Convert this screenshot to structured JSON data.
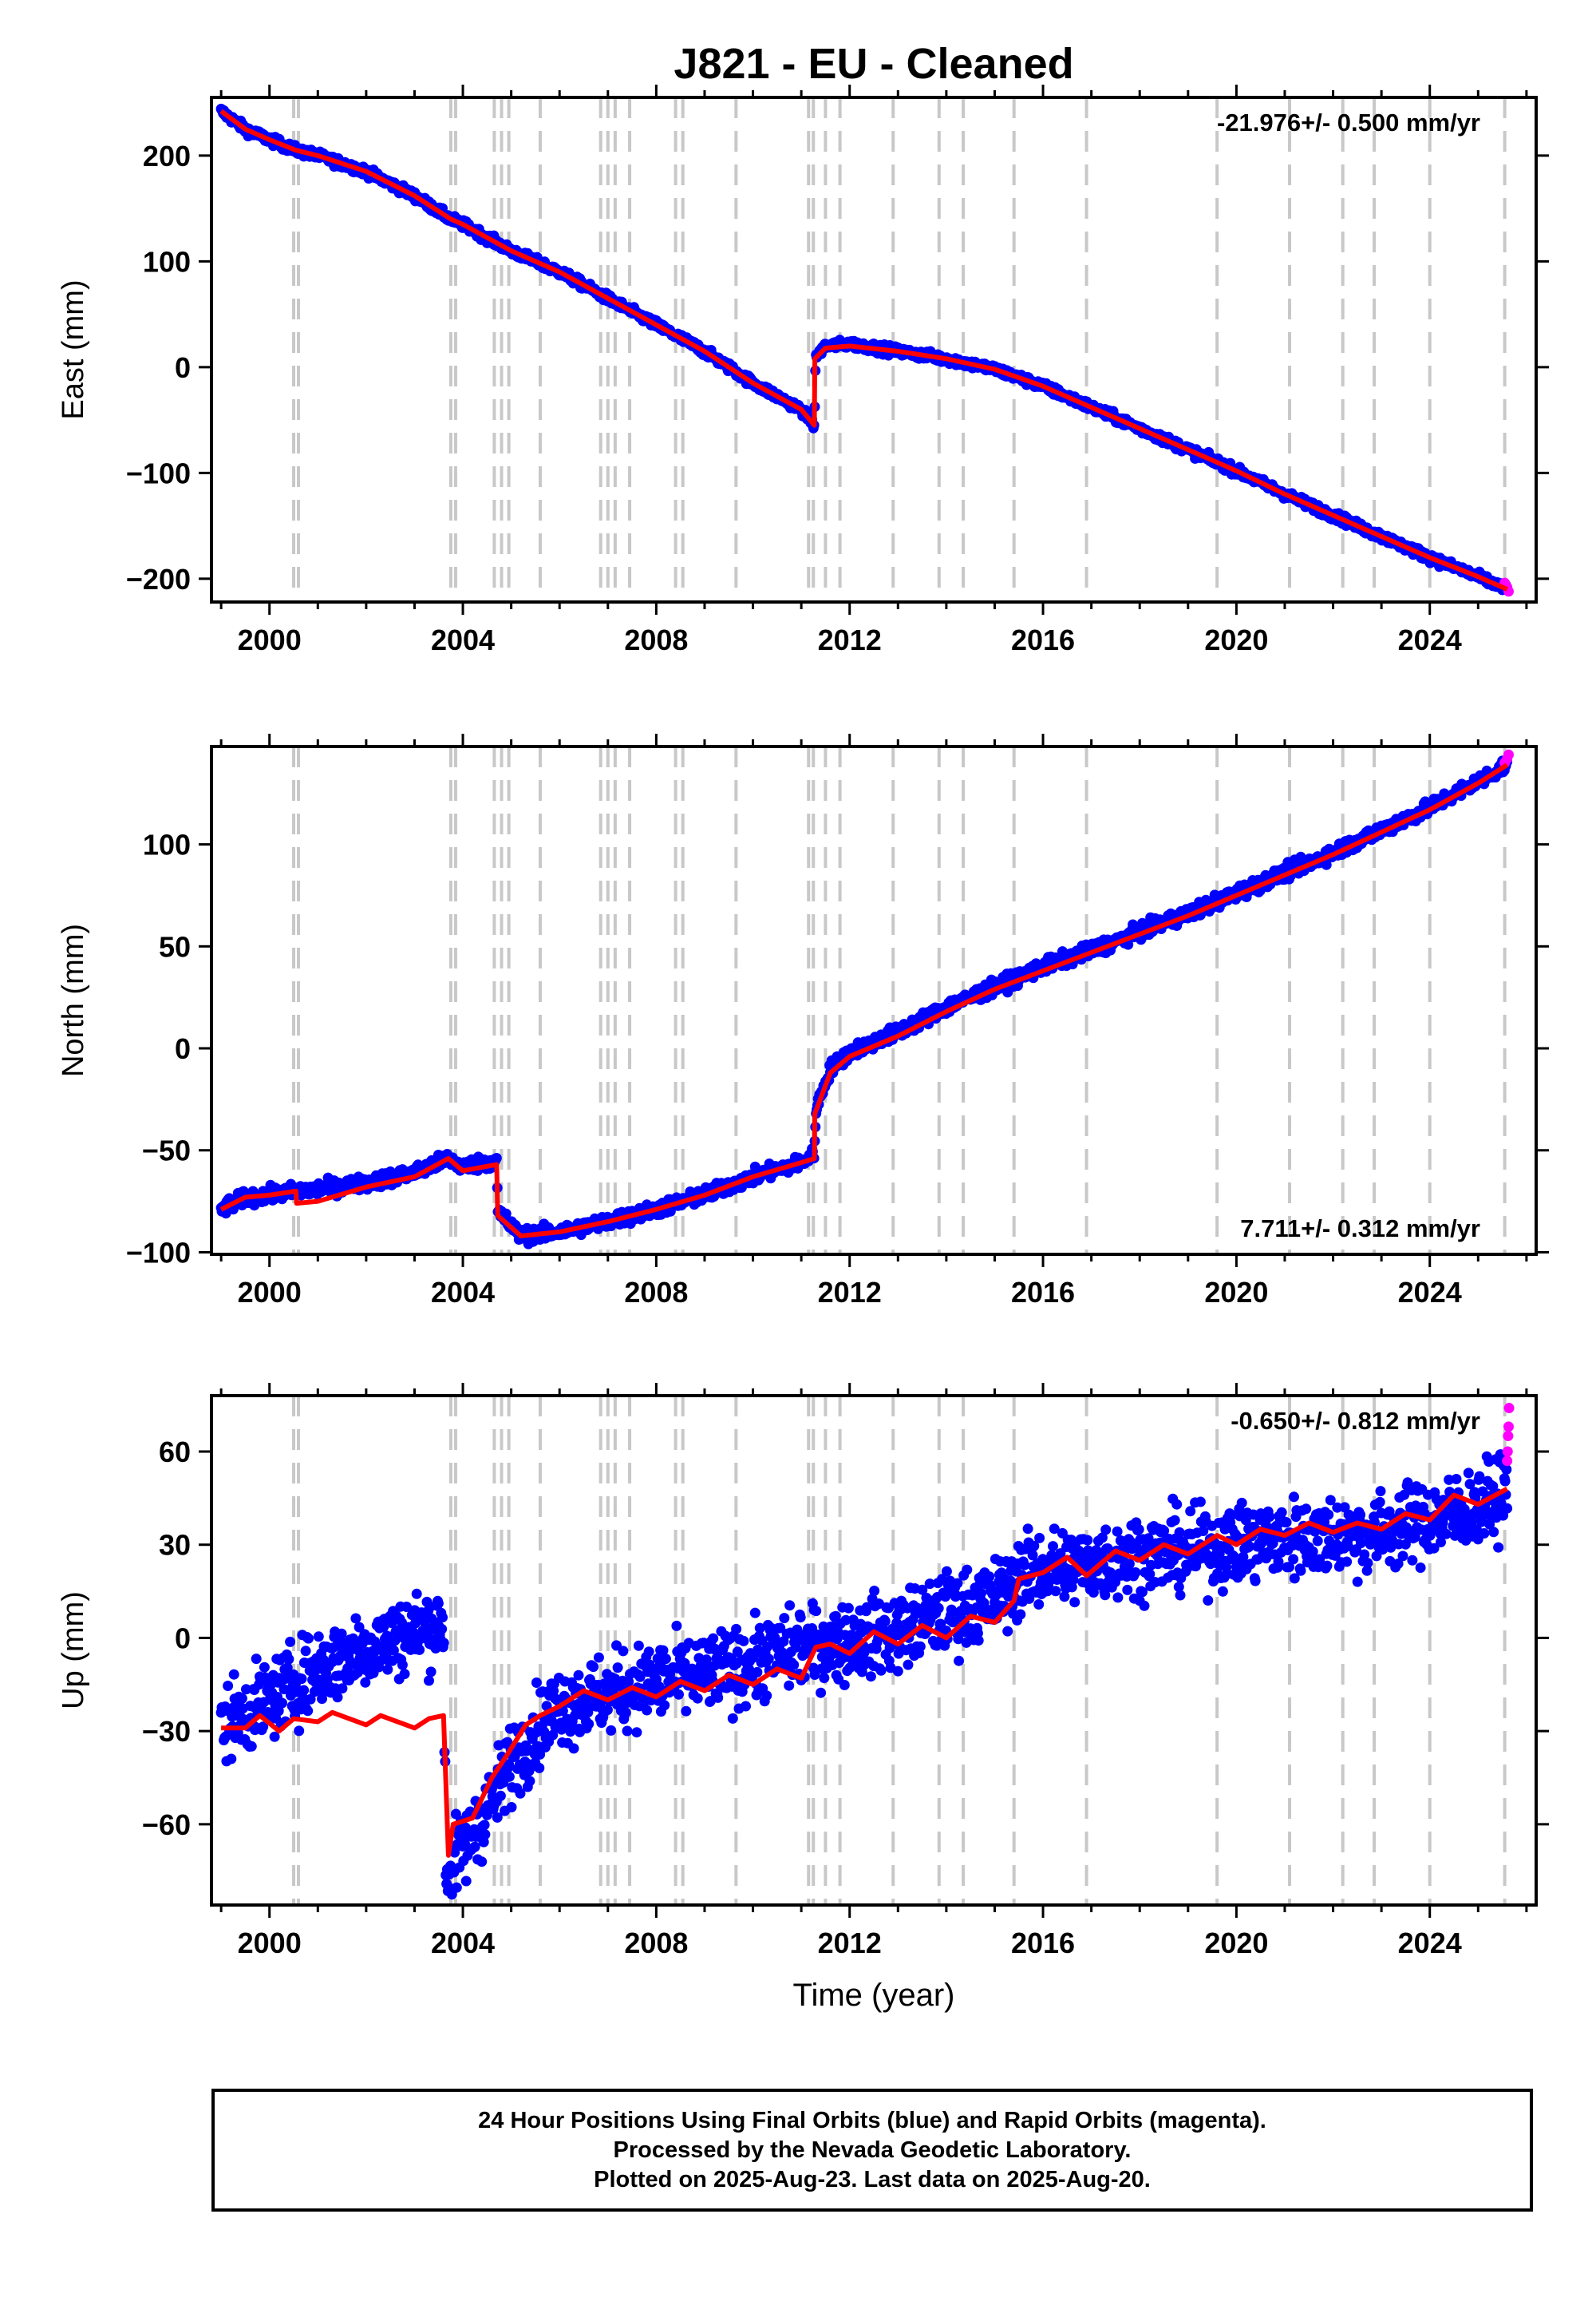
{
  "title": "J821  - EU - Cleaned",
  "xlabel": "Time (year)",
  "x_ticks": [
    "2000",
    "2004",
    "2008",
    "2012",
    "2016",
    "2020",
    "2024"
  ],
  "footer": {
    "line1": "24 Hour Positions Using Final Orbits (blue) and Rapid Orbits (magenta).",
    "line2": "Processed by the Nevada Geodetic Laboratory.",
    "line3": "Plotted on 2025-Aug-23. Last data on 2025-Aug-20."
  },
  "colors": {
    "final": "#0000ff",
    "rapid": "#ff00ff",
    "model": "#ff0000",
    "steps": "#c8c8c8"
  },
  "chart_data": [
    {
      "type": "scatter",
      "ylabel": "East (mm)",
      "rate": "-21.976+/- 0.500 mm/yr",
      "rate_position": "top-right",
      "xlim": [
        1998.8,
        2026.2
      ],
      "ylim": [
        -222,
        255
      ],
      "yticks": [
        -200,
        -100,
        0,
        100,
        200
      ],
      "ytick_labels": [
        "−200",
        "−100",
        "0",
        "100",
        "200"
      ],
      "series": [
        {
          "role": "final",
          "x": [
            1999.0,
            1999.5,
            2000.0,
            2000.55,
            2001.0,
            2002.0,
            2003.0,
            2003.75,
            2004.0,
            2005.0,
            2006.0,
            2007.0,
            2008.0,
            2009.0,
            2010.0,
            2011.0,
            2011.27,
            2011.3,
            2011.5,
            2012.0,
            2013.0,
            2014.0,
            2015.0,
            2016.0,
            2017.0,
            2018.0,
            2019.0,
            2020.0,
            2021.0,
            2022.0,
            2023.0,
            2024.0,
            2025.0,
            2025.6
          ],
          "y": [
            242,
            225,
            215,
            205,
            200,
            185,
            162,
            140,
            135,
            110,
            90,
            65,
            40,
            15,
            -15,
            -40,
            -55,
            10,
            20,
            22,
            15,
            8,
            -2,
            -18,
            -38,
            -58,
            -78,
            -98,
            -120,
            -140,
            -160,
            -180,
            -198,
            -210
          ]
        },
        {
          "role": "rapid",
          "x": [
            2025.55,
            2025.6,
            2025.63
          ],
          "y": [
            -204,
            -208,
            -212
          ]
        },
        {
          "role": "model",
          "x": [
            1999.0,
            1999.5,
            2000.0,
            2000.55,
            2001.0,
            2002.0,
            2003.0,
            2003.75,
            2004.0,
            2005.0,
            2006.0,
            2007.0,
            2008.0,
            2009.0,
            2010.0,
            2011.0,
            2011.27,
            2011.28,
            2011.5,
            2012.0,
            2013.0,
            2014.0,
            2015.0,
            2016.0,
            2017.0,
            2018.0,
            2019.0,
            2020.0,
            2021.0,
            2022.0,
            2023.0,
            2024.0,
            2025.0,
            2025.6
          ],
          "y": [
            242,
            225,
            215,
            205,
            200,
            185,
            162,
            140,
            135,
            110,
            90,
            65,
            40,
            15,
            -15,
            -40,
            -55,
            8,
            18,
            20,
            15,
            8,
            -2,
            -18,
            -38,
            -58,
            -78,
            -98,
            -120,
            -140,
            -160,
            -180,
            -198,
            -210
          ]
        }
      ]
    },
    {
      "type": "scatter",
      "ylabel": "North (mm)",
      "rate": "7.711+/- 0.312 mm/yr",
      "rate_position": "bottom-right",
      "xlim": [
        1998.8,
        2026.2
      ],
      "ylim": [
        -101,
        148
      ],
      "yticks": [
        -100,
        -50,
        0,
        50,
        100
      ],
      "ytick_labels": [
        "−100",
        "−50",
        "0",
        "50",
        "100"
      ],
      "series": [
        {
          "role": "final",
          "x": [
            1999.0,
            1999.5,
            2000.0,
            2000.55,
            2001.0,
            2002.0,
            2003.0,
            2003.7,
            2004.0,
            2004.7,
            2004.72,
            2005.2,
            2006.0,
            2007.0,
            2008.0,
            2009.0,
            2010.0,
            2011.0,
            2011.27,
            2011.3,
            2011.6,
            2012.0,
            2013.0,
            2014.0,
            2015.0,
            2016.0,
            2017.0,
            2018.0,
            2019.0,
            2020.0,
            2021.0,
            2022.0,
            2023.0,
            2024.0,
            2025.0,
            2025.6
          ],
          "y": [
            -79,
            -73,
            -72,
            -70,
            -69,
            -66,
            -61,
            -54,
            -58,
            -55,
            -80,
            -92,
            -90,
            -85,
            -79,
            -72,
            -63,
            -56,
            -52,
            -30,
            -10,
            -2,
            8,
            20,
            30,
            40,
            48,
            57,
            66,
            76,
            86,
            96,
            107,
            118,
            131,
            139
          ]
        },
        {
          "role": "rapid",
          "x": [
            2025.55,
            2025.6,
            2025.63
          ],
          "y": [
            140,
            142,
            144
          ]
        },
        {
          "role": "model",
          "x": [
            1999.0,
            1999.5,
            2000.0,
            2000.55,
            2000.56,
            2001.0,
            2002.0,
            2003.0,
            2003.7,
            2004.0,
            2004.7,
            2004.72,
            2005.2,
            2006.0,
            2007.0,
            2008.0,
            2009.0,
            2010.0,
            2011.0,
            2011.27,
            2011.28,
            2011.6,
            2012.0,
            2013.0,
            2014.0,
            2015.0,
            2016.0,
            2017.0,
            2018.0,
            2019.0,
            2020.0,
            2021.0,
            2022.0,
            2023.0,
            2024.0,
            2025.0,
            2025.6
          ],
          "y": [
            -79,
            -73,
            -72,
            -70,
            -76,
            -75,
            -68,
            -63,
            -54,
            -60,
            -57,
            -82,
            -92,
            -90,
            -85,
            -79,
            -72,
            -63,
            -56,
            -54,
            -32,
            -12,
            -4,
            6,
            18,
            29,
            38,
            47,
            56,
            65,
            75,
            85,
            95,
            106,
            117,
            130,
            139
          ]
        }
      ]
    },
    {
      "type": "scatter",
      "ylabel": "Up (mm)",
      "rate": "-0.650+/- 0.812 mm/yr",
      "rate_position": "top-right",
      "xlim": [
        1998.8,
        2026.2
      ],
      "ylim": [
        -86,
        78
      ],
      "yticks": [
        -60,
        -30,
        0,
        30,
        60
      ],
      "ytick_labels": [
        "−60",
        "−30",
        "0",
        "30",
        "60"
      ],
      "series": [
        {
          "role": "final",
          "x": [
            1999.0,
            1999.5,
            2000.0,
            2000.5,
            2001.0,
            2002.0,
            2003.0,
            2003.6,
            2003.65,
            2004.0,
            2004.5,
            2005.0,
            2005.6,
            2006.0,
            2007.0,
            2008.0,
            2009.0,
            2010.0,
            2011.0,
            2012.0,
            2013.0,
            2014.0,
            2015.0,
            2015.5,
            2016.0,
            2017.0,
            2018.0,
            2019.0,
            2020.0,
            2021.0,
            2022.0,
            2023.0,
            2024.0,
            2025.0,
            2025.6
          ],
          "y": [
            -28,
            -24,
            -20,
            -15,
            -10,
            -3,
            2,
            5,
            -75,
            -68,
            -55,
            -40,
            -28,
            -22,
            -18,
            -14,
            -12,
            -8,
            -3,
            -1,
            2,
            8,
            12,
            20,
            22,
            24,
            27,
            28,
            30,
            32,
            33,
            34,
            38,
            42,
            47
          ]
        },
        {
          "role": "rapid",
          "x": [
            2025.6,
            2025.61,
            2025.62,
            2025.63,
            2025.64
          ],
          "y": [
            57,
            60,
            65,
            68,
            74
          ]
        },
        {
          "role": "model",
          "x": [
            1999.0,
            1999.5,
            1999.8,
            2000.2,
            2000.5,
            2001.0,
            2001.3,
            2002.0,
            2002.3,
            2003.0,
            2003.3,
            2003.6,
            2003.7,
            2003.8,
            2004.2,
            2004.6,
            2004.9,
            2005.3,
            2005.6,
            2006.0,
            2006.5,
            2007.0,
            2007.5,
            2008.0,
            2008.5,
            2009.0,
            2009.5,
            2010.0,
            2010.5,
            2011.0,
            2011.3,
            2011.6,
            2012.0,
            2012.5,
            2013.0,
            2013.5,
            2014.0,
            2014.5,
            2015.0,
            2015.4,
            2015.5,
            2016.0,
            2016.5,
            2016.9,
            2017.5,
            2018.0,
            2018.5,
            2019.0,
            2019.6,
            2020.0,
            2020.5,
            2021.0,
            2021.5,
            2022.0,
            2022.5,
            2023.0,
            2023.5,
            2024.0,
            2024.5,
            2025.0,
            2025.6
          ],
          "y": [
            -29,
            -29,
            -25,
            -30,
            -26,
            -27,
            -24,
            -28,
            -25,
            -29,
            -26,
            -25,
            -70,
            -60,
            -58,
            -45,
            -38,
            -28,
            -25,
            -22,
            -17,
            -20,
            -16,
            -19,
            -14,
            -17,
            -12,
            -15,
            -10,
            -13,
            -3,
            -2,
            -5,
            2,
            -2,
            4,
            0,
            7,
            5,
            12,
            19,
            21,
            26,
            20,
            28,
            25,
            30,
            27,
            33,
            30,
            35,
            33,
            37,
            34,
            37,
            35,
            40,
            38,
            46,
            43,
            48
          ]
        }
      ]
    }
  ],
  "step_epochs_dashed": [
    2003.75,
    2003.85,
    2004.65,
    2004.8,
    2004.95,
    2005.6,
    2006.85,
    2007.0,
    2007.15,
    2007.45,
    2008.4,
    2008.55,
    2009.65,
    2011.5,
    2011.8,
    2012.9,
    2013.85,
    2014.35,
    2015.4,
    2016.9,
    2019.6,
    2021.1,
    2022.2,
    2022.85,
    2024.0,
    2025.55
  ],
  "step_epochs_bold": [
    2000.55,
    2011.2
  ]
}
